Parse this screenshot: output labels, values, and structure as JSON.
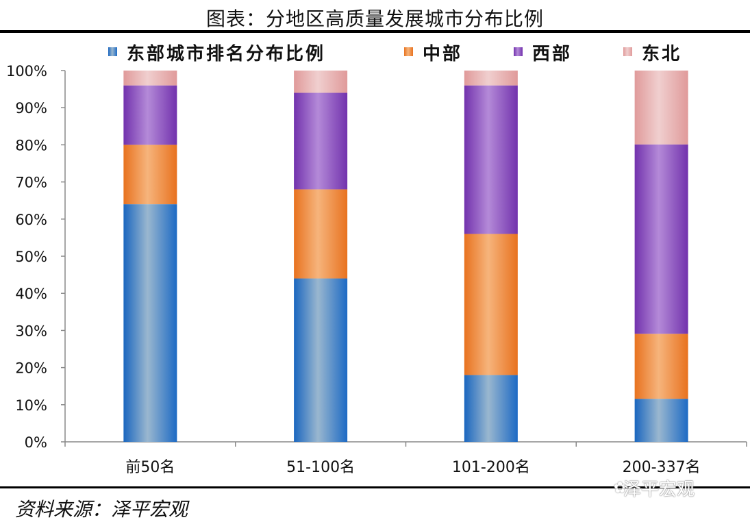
{
  "title": "图表：分地区高质量发展城市分布比例",
  "source": "资料来源：泽平宏观",
  "watermark": "泽平宏观",
  "chart_data": {
    "type": "bar",
    "stacked": true,
    "categories": [
      "前50名",
      "51-100名",
      "101-200名",
      "200-337名"
    ],
    "series": [
      {
        "name": "东部城市排名分布比例",
        "values": [
          64,
          44,
          18,
          11.6
        ],
        "color": "#1f6fc0"
      },
      {
        "name": "中部",
        "values": [
          16,
          24,
          38,
          17.5
        ],
        "color": "#e87722"
      },
      {
        "name": "西部",
        "values": [
          16,
          26,
          40,
          51
        ],
        "color": "#7b35b5"
      },
      {
        "name": "东北",
        "values": [
          4,
          6,
          4,
          19.9
        ],
        "color": "#e6a3a3"
      }
    ],
    "ylim": [
      0,
      100
    ],
    "yticks": [
      "0%",
      "10%",
      "20%",
      "30%",
      "40%",
      "50%",
      "60%",
      "70%",
      "80%",
      "90%",
      "100%"
    ],
    "xlabel": "",
    "ylabel": "",
    "legend_position": "top",
    "grid": false
  }
}
